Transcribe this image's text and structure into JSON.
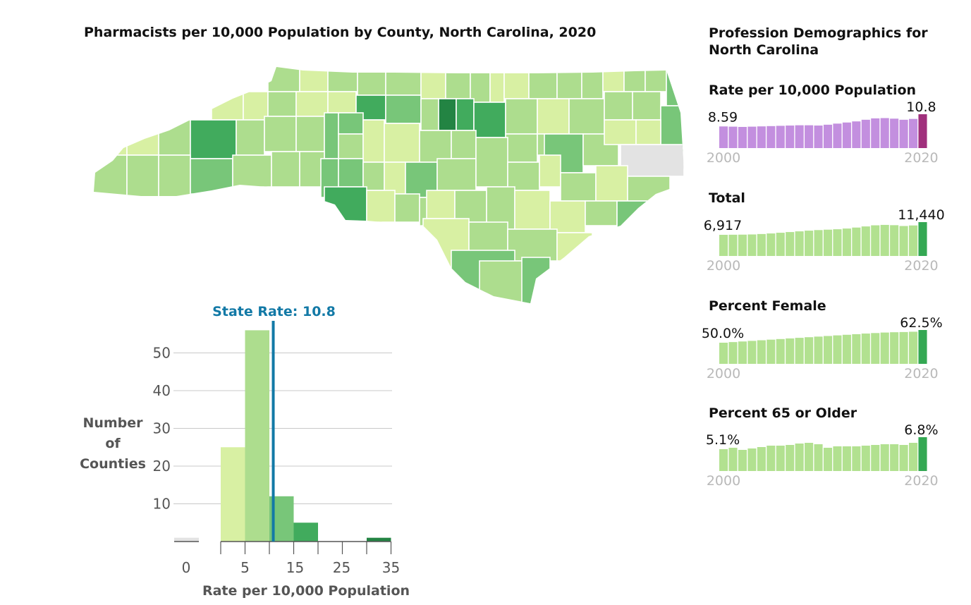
{
  "map": {
    "title": "Pharmacists per 10,000 Population by County, North Carolina, 2020"
  },
  "sidebar": {
    "title": "Profession Demographics for North Carolina"
  },
  "colors": {
    "bin_0": "#e3e3e3",
    "bin_1": "#d8f0a3",
    "bin_2": "#addd8e",
    "bin_3": "#78c679",
    "bin_4": "#41ab5d",
    "bin_5": "#238443",
    "rate_spark": "#c38fdf",
    "rate_spark_last": "#a0307c",
    "spark": "#b2e190",
    "spark_last": "#34a853",
    "state_line": "#1279a6"
  },
  "chart_data": [
    {
      "type": "bar",
      "chart": "histogram",
      "title": "",
      "state_rate_label": "State Rate: 10.8",
      "state_rate": 10.8,
      "xlabel": "Rate per 10,000 Population",
      "ylabel": "Number of Counties",
      "ylabel_lines": [
        "Number",
        "of",
        "Counties"
      ],
      "xticks": [
        "0",
        "5",
        "15",
        "25",
        "35"
      ],
      "yticks": [
        "10",
        "20",
        "30",
        "40",
        "50"
      ],
      "ylim": [
        0,
        60
      ],
      "bins": [
        {
          "range": [
            0,
            0
          ],
          "count": 1,
          "color_key": "bin_0"
        },
        {
          "range": [
            0,
            5
          ],
          "count": 25,
          "color_key": "bin_1"
        },
        {
          "range": [
            5,
            10
          ],
          "count": 56,
          "color_key": "bin_2"
        },
        {
          "range": [
            10,
            15
          ],
          "count": 12,
          "color_key": "bin_3"
        },
        {
          "range": [
            15,
            20
          ],
          "count": 5,
          "color_key": "bin_4"
        },
        {
          "range": [
            20,
            25
          ],
          "count": 0,
          "color_key": "bin_4"
        },
        {
          "range": [
            25,
            30
          ],
          "count": 0,
          "color_key": "bin_5"
        },
        {
          "range": [
            30,
            35
          ],
          "count": 1,
          "color_key": "bin_5"
        }
      ]
    },
    {
      "type": "bar",
      "chart": "sparkline",
      "title": "Rate per 10,000 Population",
      "first_label": "8.59",
      "last_label": "10.8",
      "start_year": "2000",
      "end_year": "2020",
      "values": [
        8.59,
        8.55,
        8.5,
        8.55,
        8.6,
        8.65,
        8.7,
        8.75,
        8.8,
        8.8,
        8.75,
        8.9,
        9.1,
        9.3,
        9.5,
        9.8,
        10.05,
        10.1,
        10.0,
        9.8,
        9.95,
        10.8
      ]
    },
    {
      "type": "bar",
      "chart": "sparkline",
      "title": "Total",
      "first_label": "6,917",
      "last_label": "11,440",
      "start_year": "2000",
      "end_year": "2020",
      "values": [
        6917,
        6950,
        6980,
        7050,
        7200,
        7400,
        7650,
        7900,
        8150,
        8400,
        8600,
        8750,
        8900,
        9150,
        9500,
        9900,
        10300,
        10450,
        10350,
        10050,
        10250,
        11440
      ]
    },
    {
      "type": "bar",
      "chart": "sparkline",
      "title": "Percent Female",
      "first_label": "50.0%",
      "last_label": "62.5%",
      "start_year": "2000",
      "end_year": "2020",
      "values": [
        50.0,
        50.6,
        51.2,
        51.8,
        52.4,
        53.0,
        53.6,
        54.2,
        54.8,
        55.4,
        56.0,
        56.6,
        57.2,
        57.8,
        58.4,
        59.0,
        59.5,
        60.0,
        60.3,
        60.5,
        60.8,
        62.5
      ]
    },
    {
      "type": "bar",
      "chart": "sparkline",
      "title": "Percent 65 or Older",
      "first_label": "5.1%",
      "last_label": "6.8%",
      "start_year": "2000",
      "end_year": "2020",
      "values": [
        5.1,
        5.3,
        5.0,
        5.2,
        5.4,
        5.6,
        5.6,
        5.7,
        5.9,
        6.0,
        5.8,
        5.3,
        5.5,
        5.5,
        5.5,
        5.6,
        5.7,
        5.8,
        5.8,
        5.7,
        6.0,
        6.8
      ]
    }
  ]
}
